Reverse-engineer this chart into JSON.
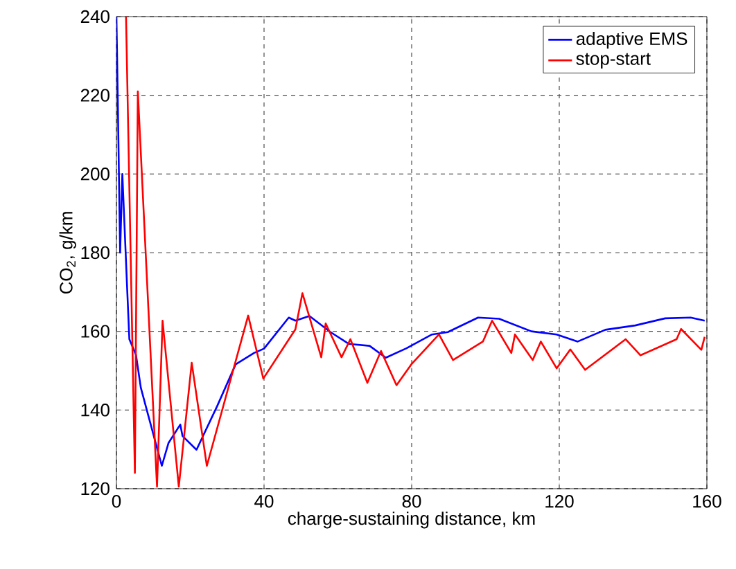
{
  "chart_data": {
    "type": "line",
    "xlabel": "charge-sustaining distance, km",
    "ylabel": "CO$_{2}$, g/km",
    "xlim": [
      0,
      160
    ],
    "ylim": [
      120,
      240
    ],
    "xticks": [
      0,
      40,
      80,
      120,
      160
    ],
    "yticks": [
      120,
      140,
      160,
      180,
      200,
      220,
      240
    ],
    "grid": true,
    "legend": "top right",
    "line_style": "solid",
    "marker": "none",
    "series": [
      {
        "name": "adaptive EMS",
        "color": "#0000ff",
        "x": [
          0,
          0.4,
          1,
          1.6,
          2.9,
          3.5,
          5.3,
          6.6,
          8.6,
          12.3,
          14.1,
          17.3,
          17.9,
          21.7,
          27.3,
          32.3,
          37.3,
          40,
          46.7,
          48.5,
          52.3,
          58,
          63,
          68.6,
          73,
          78.6,
          85.5,
          89.8,
          98,
          103.7,
          112.4,
          119.3,
          125,
          132.5,
          140.6,
          148.7,
          155.6,
          159.4
        ],
        "values": [
          240,
          217,
          180,
          200,
          171,
          158,
          154,
          145.7,
          138.7,
          125.8,
          131.6,
          136.3,
          133.4,
          129.9,
          141,
          151.6,
          154.5,
          155.6,
          163.5,
          162.7,
          163.9,
          159.8,
          156.8,
          156.3,
          153.3,
          155.7,
          159.2,
          159.8,
          163.5,
          163.2,
          160,
          159.2,
          157.4,
          160.4,
          161.5,
          163.3,
          163.5,
          162.7
        ]
      },
      {
        "name": "stop-start",
        "color": "#ff0000",
        "x": [
          2.6,
          5,
          5.8,
          11,
          12.5,
          16.9,
          20.4,
          24.5,
          35.7,
          39.8,
          48.5,
          50.4,
          55.5,
          56.7,
          61,
          63.4,
          68,
          71.7,
          75.9,
          79.9,
          87.4,
          91.2,
          99.3,
          101.8,
          107,
          108,
          112.8,
          115,
          119.3,
          123,
          127,
          138,
          142,
          151.8,
          153,
          158.5,
          159.4
        ],
        "values": [
          240,
          124,
          221,
          120.5,
          162.7,
          120.5,
          152,
          125.8,
          164,
          148,
          160.5,
          169.7,
          153.4,
          162,
          153.4,
          158,
          146.9,
          155,
          146.3,
          151.6,
          159.2,
          152.7,
          157.4,
          162.7,
          154.5,
          159.2,
          152.7,
          157.4,
          150.6,
          155.4,
          150.2,
          158,
          153.9,
          158,
          160.6,
          155.3,
          158.6
        ]
      }
    ]
  }
}
